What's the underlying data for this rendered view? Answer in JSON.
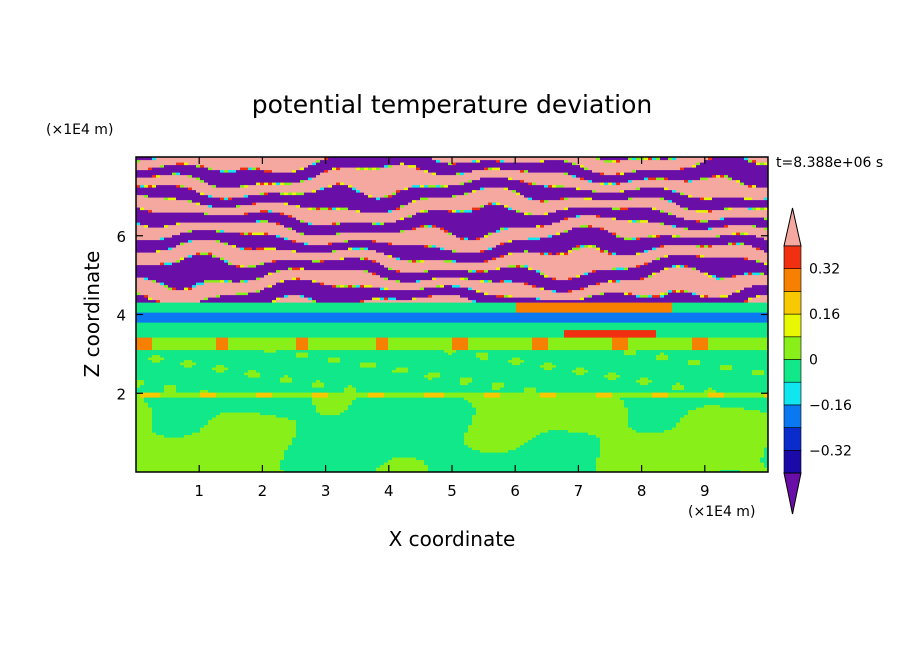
{
  "chart_data": {
    "type": "heatmap",
    "title": "potential temperature deviation",
    "xlabel": "X coordinate",
    "ylabel": "Z coordinate",
    "x_unit": "(×1E4 m)",
    "y_unit": "(×1E4 m)",
    "time_label": "t=8.388e+06 s",
    "xlim": [
      0,
      10
    ],
    "ylim": [
      0,
      8
    ],
    "x_ticks": [
      "1",
      "2",
      "3",
      "4",
      "5",
      "6",
      "7",
      "8",
      "9"
    ],
    "y_ticks": [
      "2",
      "4",
      "6"
    ],
    "colorbar": {
      "levels": [
        -0.4,
        -0.32,
        -0.24,
        -0.16,
        -0.08,
        0,
        0.08,
        0.16,
        0.24,
        0.32,
        0.4
      ],
      "colors": [
        "#6a0ea8",
        "#1c0aa8",
        "#0a2ccd",
        "#0a78f0",
        "#10e6f0",
        "#10e88a",
        "#88f018",
        "#e8f800",
        "#f8c800",
        "#f88000",
        "#f03010",
        "#f4a8a0"
      ],
      "tick_labels": [
        "-0.32",
        "-0.16",
        "0",
        "0.16",
        "0.32"
      ],
      "extend": "both"
    },
    "bands": [
      {
        "z": [
          0.0,
          1.9
        ],
        "description": "mixed",
        "dominant_value": 0.02,
        "secondary_value": -0.02
      },
      {
        "z": [
          1.9,
          2.05
        ],
        "dominant_value": 0.08
      },
      {
        "z": [
          2.05,
          3.1
        ],
        "dominant_value": -0.02
      },
      {
        "z": [
          3.1,
          3.4
        ],
        "dominant_value": 0.04
      },
      {
        "z": [
          3.4,
          3.8
        ],
        "dominant_value": -0.04
      },
      {
        "z": [
          3.8,
          4.05
        ],
        "dominant_value": -0.2
      },
      {
        "z": [
          4.05,
          4.3
        ],
        "dominant_value": -0.04
      },
      {
        "z": [
          4.3,
          8.0
        ],
        "dominant_value": 0.45,
        "secondary_value": -0.45
      }
    ]
  }
}
